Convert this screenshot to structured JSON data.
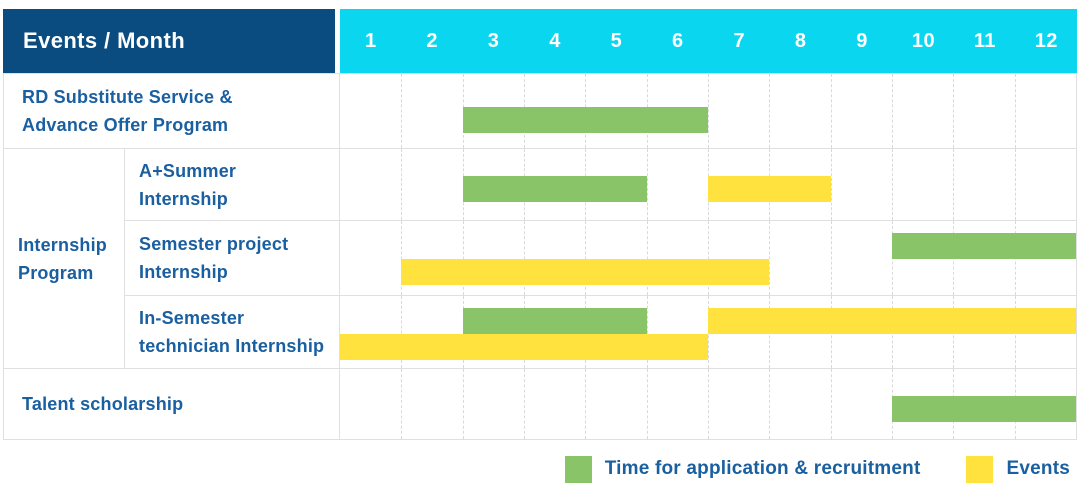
{
  "colors": {
    "navy": "#0a4c7f",
    "cyan": "#0bd6f0",
    "green": "#8ac468",
    "yellow": "#ffe23d",
    "label_blue": "#1a5fa0",
    "grid_line": "#e0e0e0",
    "guide_line": "#d9d9d9"
  },
  "table": {
    "header_title": "Events / Month",
    "months": [
      "1",
      "2",
      "3",
      "4",
      "5",
      "6",
      "7",
      "8",
      "9",
      "10",
      "11",
      "12"
    ],
    "group_label": "Internship Program",
    "group_label_lines": [
      "Internship",
      "Program"
    ]
  },
  "legend": {
    "items": [
      {
        "series": "application",
        "color": "green",
        "label": "Time for application & recruitment"
      },
      {
        "series": "events",
        "color": "yellow",
        "label": "Events"
      }
    ]
  },
  "chart_data": {
    "type": "gantt",
    "x_axis": {
      "label": "Month",
      "ticks": [
        1,
        2,
        3,
        4,
        5,
        6,
        7,
        8,
        9,
        10,
        11,
        12
      ],
      "range": [
        1,
        12
      ]
    },
    "legend": {
      "green": "Time for application & recruitment",
      "yellow": "Events"
    },
    "rows": [
      {
        "group": "",
        "label": "RD Substitute Service & Advance Offer Program",
        "label_lines": [
          "RD Substitute Service &",
          "Advance Offer Program"
        ],
        "bars": [
          {
            "series": "application",
            "color": "green",
            "start_month": 3,
            "end_month": 6,
            "lane": 0
          }
        ]
      },
      {
        "group": "Internship Program",
        "label": "A+Summer Internship",
        "label_lines": [
          "A+Summer",
          "Internship"
        ],
        "bars": [
          {
            "series": "application",
            "color": "green",
            "start_month": 3,
            "end_month": 5,
            "lane": 0
          },
          {
            "series": "events",
            "color": "yellow",
            "start_month": 7,
            "end_month": 8,
            "lane": 0
          }
        ]
      },
      {
        "group": "Internship Program",
        "label": "Semester project Internship",
        "label_lines": [
          "Semester project",
          "Internship"
        ],
        "bars": [
          {
            "series": "application",
            "color": "green",
            "start_month": 10,
            "end_month": 12,
            "lane": 0
          },
          {
            "series": "events",
            "color": "yellow",
            "start_month": 2,
            "end_month": 7,
            "lane": 1
          }
        ]
      },
      {
        "group": "Internship Program",
        "label": "In-Semester technician Internship",
        "label_lines": [
          "In-Semester",
          "technician Internship"
        ],
        "bars": [
          {
            "series": "application",
            "color": "green",
            "start_month": 3,
            "end_month": 5,
            "lane": 0
          },
          {
            "series": "events",
            "color": "yellow",
            "start_month": 7,
            "end_month": 12,
            "lane": 0
          },
          {
            "series": "events",
            "color": "yellow",
            "start_month": 1,
            "end_month": 6,
            "lane": 1
          }
        ]
      },
      {
        "group": "",
        "label": "Talent scholarship",
        "label_lines": [
          "Talent scholarship"
        ],
        "bars": [
          {
            "series": "application",
            "color": "green",
            "start_month": 10,
            "end_month": 12,
            "lane": 0
          }
        ]
      }
    ]
  }
}
